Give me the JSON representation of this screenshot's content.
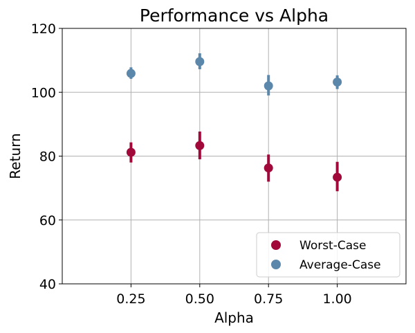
{
  "chart_data": {
    "type": "scatter",
    "title": "Performance vs Alpha",
    "xlabel": "Alpha",
    "ylabel": "Return",
    "xlim": [
      0.0,
      1.25
    ],
    "ylim": [
      40,
      120
    ],
    "xticks": [
      0.25,
      0.5,
      0.75,
      1.0
    ],
    "xtick_labels": [
      "0.25",
      "0.50",
      "0.75",
      "1.00"
    ],
    "yticks": [
      40,
      60,
      80,
      100,
      120
    ],
    "ytick_labels": [
      "40",
      "60",
      "80",
      "100",
      "120"
    ],
    "grid": true,
    "legend_position": "bottom-right",
    "series": [
      {
        "name": "Worst-Case",
        "color": "#a0093a",
        "x": [
          0.25,
          0.5,
          0.75,
          1.0
        ],
        "y": [
          81.2,
          83.3,
          76.3,
          73.4
        ],
        "err_low": [
          78.0,
          79.0,
          72.0,
          69.0
        ],
        "err_high": [
          84.3,
          87.7,
          80.5,
          78.2
        ]
      },
      {
        "name": "Average-Case",
        "color": "#5b87ab",
        "x": [
          0.25,
          0.5,
          0.75,
          1.0
        ],
        "y": [
          105.9,
          109.6,
          102.0,
          103.2
        ],
        "err_low": [
          104.2,
          107.2,
          99.0,
          101.0
        ],
        "err_high": [
          107.8,
          112.2,
          105.4,
          105.3
        ]
      }
    ]
  }
}
